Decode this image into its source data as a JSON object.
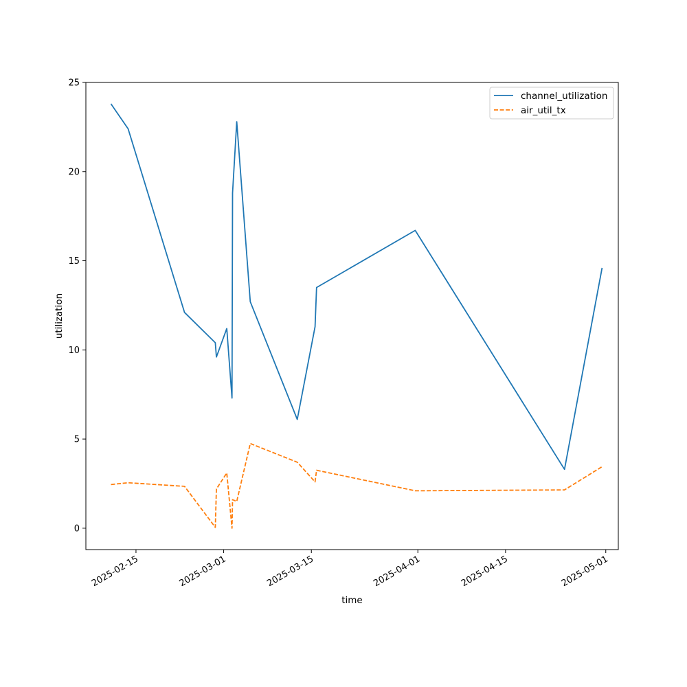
{
  "chart_data": {
    "type": "line",
    "title": "",
    "xlabel": "time",
    "ylabel": "utilization",
    "xlim": [
      "2025-02-07",
      "2025-05-03"
    ],
    "ylim": [
      -1.2,
      25
    ],
    "x_ticks": [
      "2025-02-15",
      "2025-03-01",
      "2025-03-15",
      "2025-04-01",
      "2025-04-15",
      "2025-05-01"
    ],
    "y_ticks": [
      0,
      5,
      10,
      15,
      20,
      25
    ],
    "y_tick_labels": [
      "0",
      "5",
      "10",
      "15",
      "20",
      "25"
    ],
    "grid": false,
    "legend_position": "top-right",
    "series": [
      {
        "name": "channel_utilization",
        "color": "#1f77b4",
        "dash": "solid",
        "points": [
          [
            "2025-02-11",
            23.8
          ],
          [
            "2025-02-13 18:00",
            22.4
          ],
          [
            "2025-02-22 18:00",
            12.1
          ],
          [
            "2025-02-27 16:00",
            10.4
          ],
          [
            "2025-02-27 20:00",
            9.6
          ],
          [
            "2025-03-01 12:00",
            11.2
          ],
          [
            "2025-03-02 08:00",
            7.3
          ],
          [
            "2025-03-02 10:00",
            18.8
          ],
          [
            "2025-03-03 02:00",
            22.8
          ],
          [
            "2025-03-05 06:00",
            12.7
          ],
          [
            "2025-03-12 18:00",
            6.1
          ],
          [
            "2025-03-15 14:00",
            11.3
          ],
          [
            "2025-03-15 20:00",
            13.5
          ],
          [
            "2025-03-31 14:00",
            16.7
          ],
          [
            "2025-04-24 10:00",
            3.3
          ],
          [
            "2025-04-30 10:00",
            14.6
          ]
        ]
      },
      {
        "name": "air_util_tx",
        "color": "#ff7f0e",
        "dash": "dashed",
        "points": [
          [
            "2025-02-11",
            2.45
          ],
          [
            "2025-02-13 18:00",
            2.55
          ],
          [
            "2025-02-22 18:00",
            2.35
          ],
          [
            "2025-02-27 16:00",
            0.05
          ],
          [
            "2025-02-27 20:00",
            2.2
          ],
          [
            "2025-03-01 12:00",
            3.1
          ],
          [
            "2025-03-02 08:00",
            0.0
          ],
          [
            "2025-03-02 10:00",
            1.6
          ],
          [
            "2025-03-03 02:00",
            1.5
          ],
          [
            "2025-03-05 06:00",
            4.75
          ],
          [
            "2025-03-12 18:00",
            3.7
          ],
          [
            "2025-03-15 14:00",
            2.6
          ],
          [
            "2025-03-15 20:00",
            3.25
          ],
          [
            "2025-03-31 14:00",
            2.1
          ],
          [
            "2025-04-24 10:00",
            2.15
          ],
          [
            "2025-04-30 10:00",
            3.45
          ]
        ]
      }
    ]
  }
}
